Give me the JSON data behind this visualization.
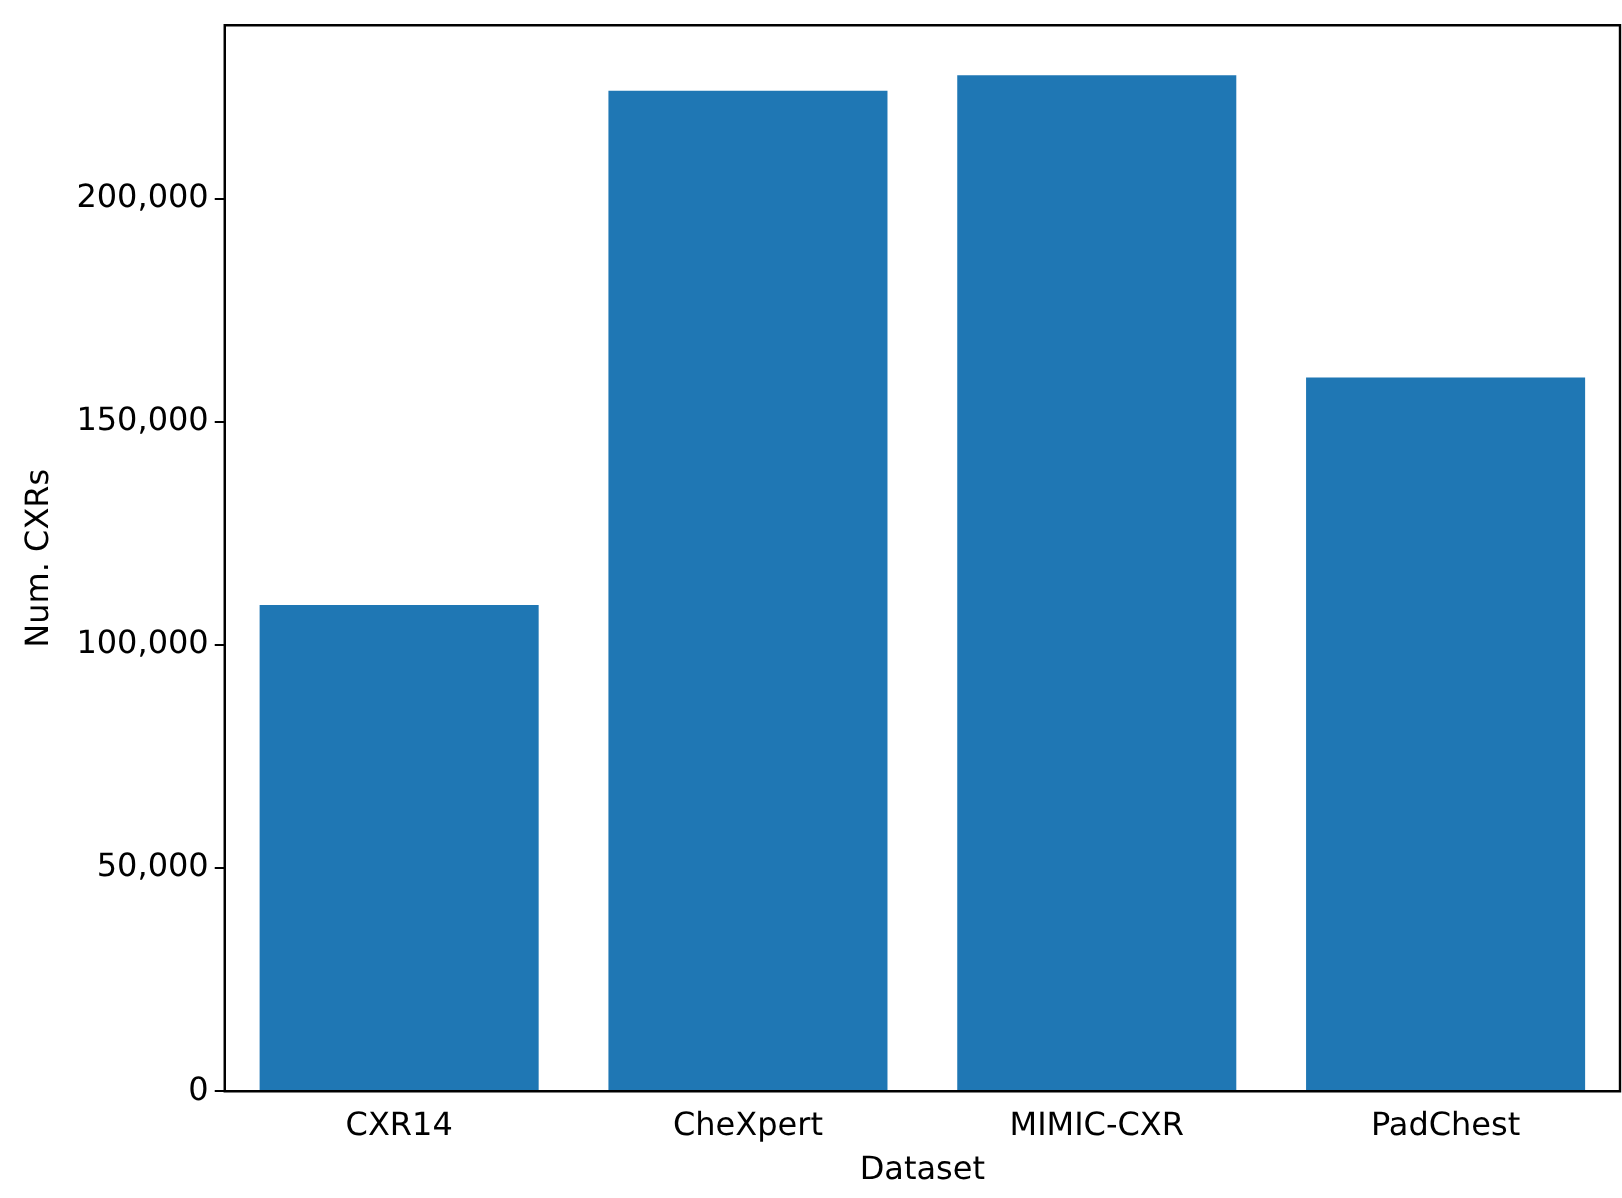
{
  "chart_data": {
    "type": "bar",
    "xlabel": "Dataset",
    "ylabel": "Num. CXRs",
    "categories": [
      "CXR14",
      "CheXpert",
      "MIMIC-CXR",
      "PadChest"
    ],
    "values": [
      109000,
      224300,
      227800,
      160000
    ],
    "color": "#1f77b4",
    "ylim": [
      0,
      239000
    ],
    "yticks": [
      {
        "value": 0,
        "label": "0"
      },
      {
        "value": 50000,
        "label": "50,000"
      },
      {
        "value": 100000,
        "label": "100,000"
      },
      {
        "value": 150000,
        "label": "150,000"
      },
      {
        "value": 200000,
        "label": "200,000"
      }
    ],
    "grid": false,
    "legend": false
  }
}
